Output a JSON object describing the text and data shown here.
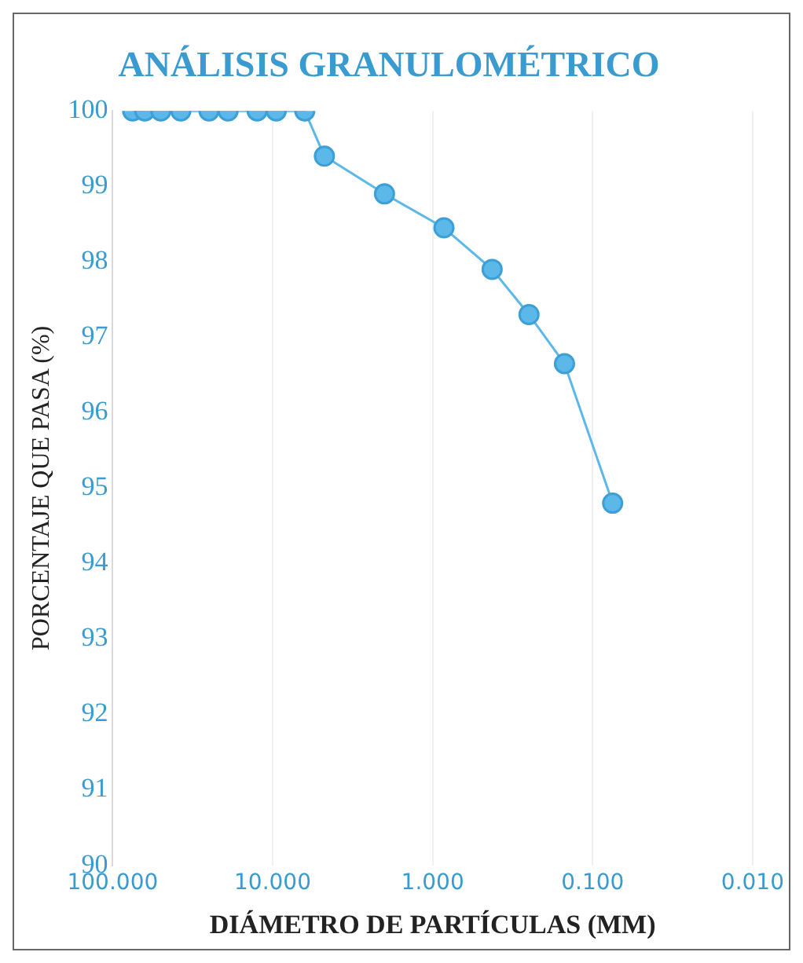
{
  "chart_data": {
    "type": "line",
    "title": "ANÁLISIS GRANULOMÉTRICO",
    "xlabel": "DIÁMETRO DE PARTÍCULAS (MM)",
    "ylabel": "PORCENTAJE QUE PASA (%)",
    "x": [
      75,
      63,
      50,
      37.5,
      25,
      19,
      12.5,
      9.5,
      6.3,
      4.75,
      2,
      0.85,
      0.425,
      0.25,
      0.15,
      0.075
    ],
    "values": [
      100,
      100,
      100,
      100,
      100,
      100,
      100,
      100,
      100,
      99.4,
      98.9,
      98.45,
      97.9,
      97.3,
      96.65,
      94.8
    ],
    "color": "#5bb8e8",
    "marker": "circle",
    "line_style": "solid",
    "log": "x",
    "grid": "x",
    "xlim": [
      100,
      0.01
    ],
    "xticks": [
      {
        "value": 100,
        "label": "100.000"
      },
      {
        "value": 10,
        "label": "10.000"
      },
      {
        "value": 1,
        "label": "1.000"
      },
      {
        "value": 0.1,
        "label": "0.100"
      },
      {
        "value": 0.01,
        "label": "0.010"
      }
    ],
    "ylim": [
      90,
      100
    ],
    "yticks": [
      90,
      91,
      92,
      93,
      94,
      95,
      96,
      97,
      98,
      99,
      100
    ]
  }
}
